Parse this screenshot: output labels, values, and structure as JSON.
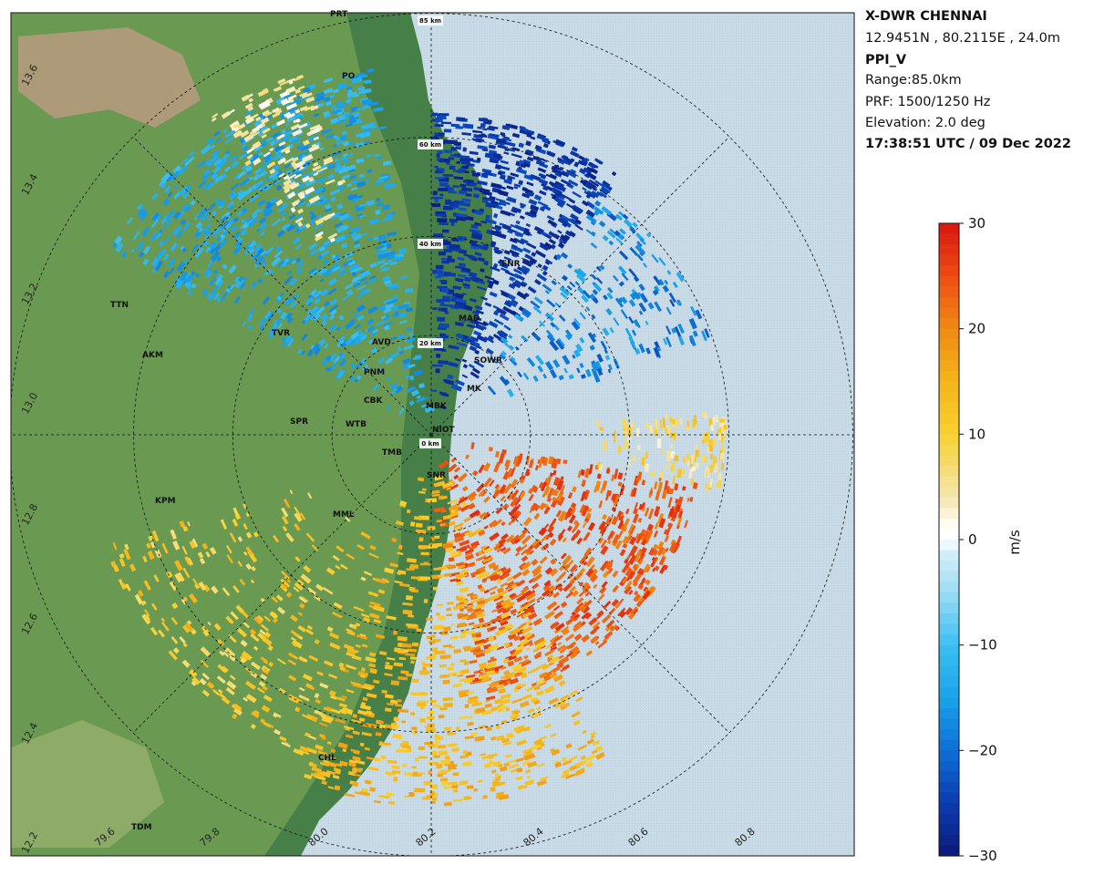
{
  "header": {
    "station": "X-DWR CHENNAI",
    "coords": "12.9451N , 80.2115E , 24.0m",
    "product": "PPI_V",
    "range": "Range:85.0km",
    "prf": "PRF: 1500/1250 Hz",
    "elevation": "Elevation: 2.0 deg",
    "datetime": "17:38:51 UTC / 09 Dec 2022"
  },
  "colorbar": {
    "label": "m/s",
    "ticks": [
      "30",
      "20",
      "10",
      "0",
      "−10",
      "−20",
      "−30"
    ],
    "tick_values": [
      30,
      20,
      10,
      0,
      -10,
      -20,
      -30
    ],
    "stops": [
      {
        "v": -30,
        "c": "#0a1a7a"
      },
      {
        "v": -25,
        "c": "#0b3cb0"
      },
      {
        "v": -20,
        "c": "#0d6fd6"
      },
      {
        "v": -15,
        "c": "#1aa3ea"
      },
      {
        "v": -10,
        "c": "#3cc0f2"
      },
      {
        "v": -5,
        "c": "#9bdcf4"
      },
      {
        "v": -1,
        "c": "#d7f0fa"
      },
      {
        "v": 0,
        "c": "#ffffff"
      },
      {
        "v": 1,
        "c": "#ffffff"
      },
      {
        "v": 4,
        "c": "#f4e6b0"
      },
      {
        "v": 10,
        "c": "#f8d030"
      },
      {
        "v": 15,
        "c": "#f4b51a"
      },
      {
        "v": 20,
        "c": "#f08a12"
      },
      {
        "v": 25,
        "c": "#ee4d14"
      },
      {
        "v": 30,
        "c": "#d8150e"
      }
    ]
  },
  "map": {
    "range_ring_labels": [
      "0 km",
      "20 km",
      "40 km",
      "60 km",
      "85 km"
    ],
    "range_ring_km": [
      20,
      40,
      60,
      85
    ],
    "latitude_labels": [
      "13.6",
      "13.4",
      "13.2",
      "13.0",
      "12.8",
      "12.6",
      "12.4",
      "12.2"
    ],
    "longitude_labels": [
      "79.6",
      "79.8",
      "80.0",
      "80.2",
      "80.4",
      "80.6",
      "80.8"
    ],
    "places": [
      "PRT",
      "PO",
      "ENR",
      "MAD",
      "TTN",
      "TVR",
      "AVD",
      "AKM",
      "PNM",
      "SOWR",
      "CBK",
      "MBK",
      "MK",
      "SPR",
      "WTB",
      "NIOT",
      "TMB",
      "SNR",
      "KPM",
      "MML",
      "CHL",
      "TDM"
    ],
    "colors": {
      "sea": "#c8dbe6",
      "land": "#6a9a52",
      "land_dark": "#3f7a46",
      "land_light": "#a8b878",
      "hills": "#c39a86",
      "border": "#111111"
    }
  }
}
